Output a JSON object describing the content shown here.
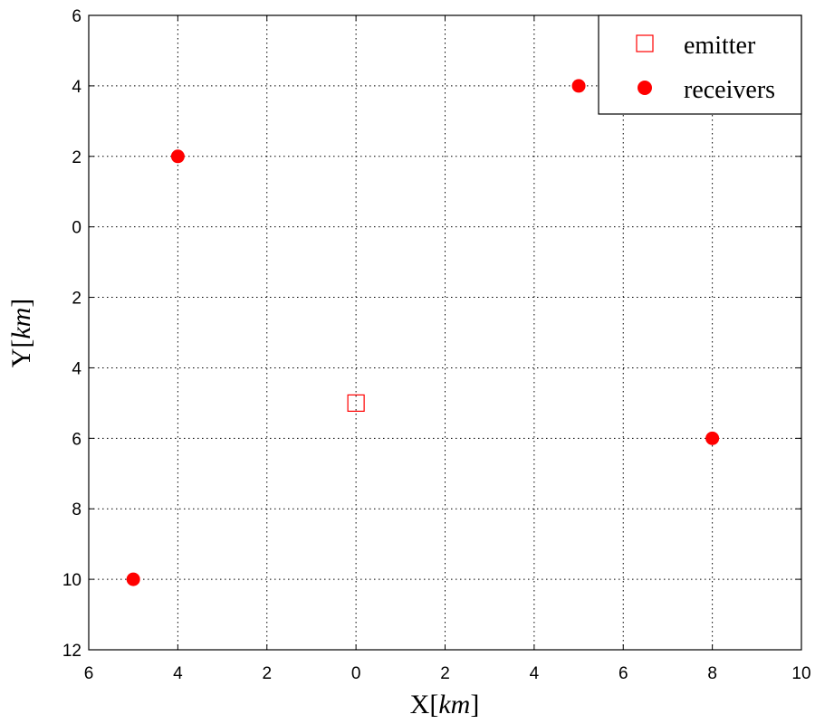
{
  "chart_data": {
    "type": "scatter",
    "title": "",
    "xlabel": {
      "prefix": "X[",
      "unit": "km",
      "suffix": "]"
    },
    "ylabel": {
      "prefix": "Y[",
      "unit": "km",
      "suffix": "]"
    },
    "xlim": [
      -6,
      10
    ],
    "ylim": [
      -12,
      6
    ],
    "xticks": [
      -6,
      -4,
      -2,
      0,
      2,
      4,
      6,
      8,
      10
    ],
    "xtick_labels": [
      "6",
      "4",
      "2",
      "0",
      "2",
      "4",
      "6",
      "8",
      "10"
    ],
    "yticks": [
      6,
      4,
      2,
      0,
      -2,
      -4,
      -6,
      -8,
      -10,
      -12
    ],
    "ytick_labels": [
      "6",
      "4",
      "2",
      "0",
      "2",
      "4",
      "6",
      "8",
      "10",
      "12"
    ],
    "grid": true,
    "legend_position": "top-right",
    "series": [
      {
        "name": "emitter",
        "marker": "hollow-square",
        "color": "#ff0000",
        "points": [
          {
            "x": 0,
            "y": -5
          }
        ]
      },
      {
        "name": "receivers",
        "marker": "filled-circle",
        "color": "#ff0000",
        "points": [
          {
            "x": -4,
            "y": 2
          },
          {
            "x": 5,
            "y": 4
          },
          {
            "x": 8,
            "y": -6
          },
          {
            "x": -5,
            "y": -10
          }
        ]
      }
    ]
  }
}
